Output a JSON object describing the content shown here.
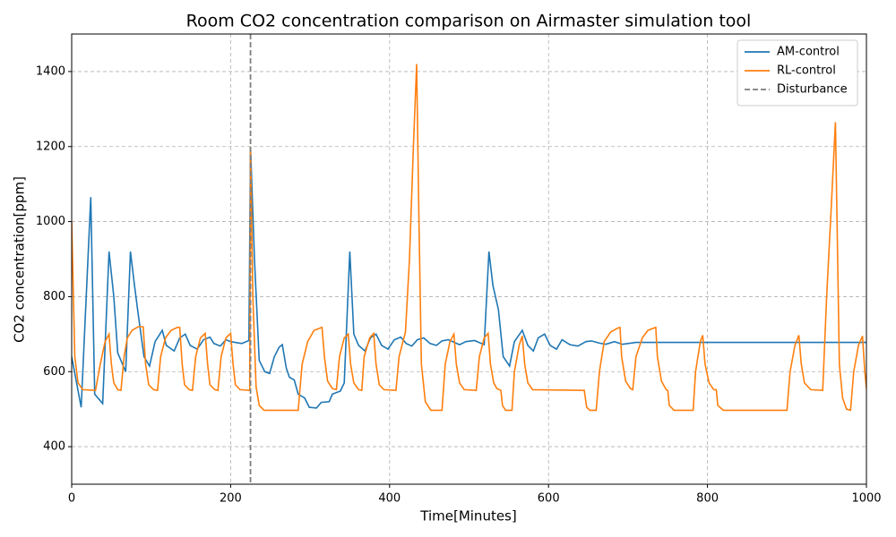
{
  "chart_data": {
    "type": "line",
    "title": "Room CO2 concentration comparison on Airmaster simulation tool",
    "x_label": "Time[Minutes]",
    "y_label": "CO2 concentration[ppm]",
    "xlim": [
      0,
      1000
    ],
    "ylim": [
      300,
      1500
    ],
    "xticks": [
      0,
      200,
      400,
      600,
      800,
      1000
    ],
    "yticks": [
      400,
      600,
      800,
      1000,
      1200,
      1400
    ],
    "grid": true,
    "legend": "upper right",
    "series": [
      {
        "name": "AM-control",
        "color": "#1f77b4",
        "x": [
          0,
          12,
          24,
          29,
          39,
          47,
          53,
          58,
          68,
          74,
          79,
          83,
          91,
          98,
          105,
          114,
          119,
          129,
          136,
          143,
          149,
          158,
          166,
          174,
          179,
          187,
          194,
          200,
          214,
          223,
          225,
          230,
          236,
          243,
          249,
          255,
          261,
          265,
          270,
          274,
          280,
          285,
          293,
          299,
          308,
          314,
          324,
          328,
          338,
          343,
          350,
          355,
          361,
          369,
          376,
          383,
          390,
          398,
          406,
          414,
          421,
          428,
          435,
          443,
          451,
          459,
          466,
          474,
          488,
          496,
          507,
          519,
          525,
          530,
          537,
          543,
          551,
          557,
          567,
          574,
          581,
          587,
          595,
          602,
          610,
          617,
          627,
          637,
          647,
          654,
          664,
          672,
          683,
          693,
          710,
          1000
        ],
        "values": [
          640,
          505,
          1065,
          540,
          515,
          920,
          800,
          650,
          600,
          920,
          830,
          765,
          640,
          615,
          680,
          710,
          670,
          655,
          690,
          700,
          670,
          660,
          685,
          692,
          675,
          668,
          685,
          680,
          675,
          683,
          1200,
          900,
          630,
          600,
          595,
          640,
          665,
          672,
          610,
          585,
          578,
          540,
          530,
          505,
          503,
          518,
          520,
          540,
          548,
          570,
          920,
          700,
          670,
          655,
          690,
          700,
          670,
          660,
          685,
          692,
          675,
          668,
          685,
          690,
          675,
          670,
          682,
          685,
          672,
          680,
          683,
          672,
          920,
          830,
          765,
          640,
          615,
          680,
          710,
          670,
          655,
          690,
          700,
          670,
          660,
          685,
          672,
          668,
          680,
          682,
          676,
          673,
          680,
          673,
          678,
          678
        ]
      },
      {
        "name": "RL-control",
        "color": "#ff7f0e",
        "x": [
          0,
          4,
          8,
          14,
          30,
          36,
          42,
          47,
          50,
          53,
          58,
          62,
          66,
          70,
          76,
          84,
          90,
          93,
          97,
          103,
          108,
          112,
          118,
          125,
          133,
          136,
          139,
          142,
          148,
          152,
          156,
          162,
          168,
          171,
          174,
          180,
          184,
          188,
          194,
          200,
          203,
          206,
          212,
          224,
          225,
          228,
          232,
          236,
          242,
          285,
          290,
          297,
          305,
          315,
          318,
          322,
          328,
          333,
          337,
          343,
          348,
          351,
          355,
          361,
          365,
          368,
          375,
          380,
          383,
          387,
          393,
          408,
          412,
          418,
          420,
          425,
          430,
          434,
          437,
          440,
          445,
          452,
          466,
          470,
          476,
          481,
          484,
          488,
          494,
          509,
          513,
          519,
          524,
          527,
          531,
          535,
          540,
          542,
          546,
          554,
          557,
          563,
          567,
          570,
          574,
          580,
          645,
          648,
          652,
          660,
          664,
          670,
          678,
          686,
          690,
          692,
          697,
          703,
          706,
          710,
          718,
          725,
          735,
          737,
          742,
          748,
          750,
          752,
          758,
          782,
          785,
          791,
          794,
          797,
          802,
          808,
          811,
          813,
          820,
          900,
          904,
          910,
          915,
          918,
          922,
          930,
          945,
          950,
          956,
          961,
          963,
          966,
          970,
          975,
          980,
          984,
          990,
          995,
          998,
          1000
        ],
        "values": [
          1000,
          640,
          570,
          552,
          550,
          620,
          680,
          700,
          620,
          570,
          552,
          550,
          640,
          690,
          710,
          720,
          720,
          620,
          565,
          552,
          550,
          640,
          690,
          710,
          718,
          718,
          620,
          565,
          552,
          550,
          640,
          690,
          702,
          620,
          565,
          552,
          550,
          640,
          690,
          702,
          620,
          565,
          552,
          550,
          1200,
          800,
          560,
          510,
          497,
          497,
          620,
          680,
          710,
          718,
          640,
          575,
          555,
          552,
          640,
          690,
          700,
          620,
          570,
          552,
          550,
          640,
          690,
          702,
          620,
          565,
          552,
          550,
          640,
          690,
          705,
          900,
          1200,
          1420,
          1000,
          620,
          520,
          497,
          497,
          620,
          680,
          700,
          620,
          570,
          552,
          550,
          640,
          690,
          702,
          620,
          570,
          555,
          550,
          510,
          497,
          497,
          600,
          670,
          695,
          620,
          570,
          552,
          550,
          505,
          497,
          497,
          600,
          680,
          705,
          715,
          718,
          640,
          575,
          555,
          552,
          640,
          690,
          710,
          718,
          640,
          575,
          552,
          550,
          510,
          497,
          497,
          600,
          680,
          697,
          620,
          570,
          552,
          552,
          510,
          497,
          497,
          600,
          670,
          697,
          620,
          570,
          552,
          550,
          800,
          1050,
          1265,
          1000,
          620,
          530,
          500,
          497,
          600,
          670,
          695,
          600,
          555
        ]
      }
    ],
    "vlines": [
      {
        "name": "Disturbance",
        "x": 225,
        "color": "#7f7f7f"
      }
    ]
  }
}
